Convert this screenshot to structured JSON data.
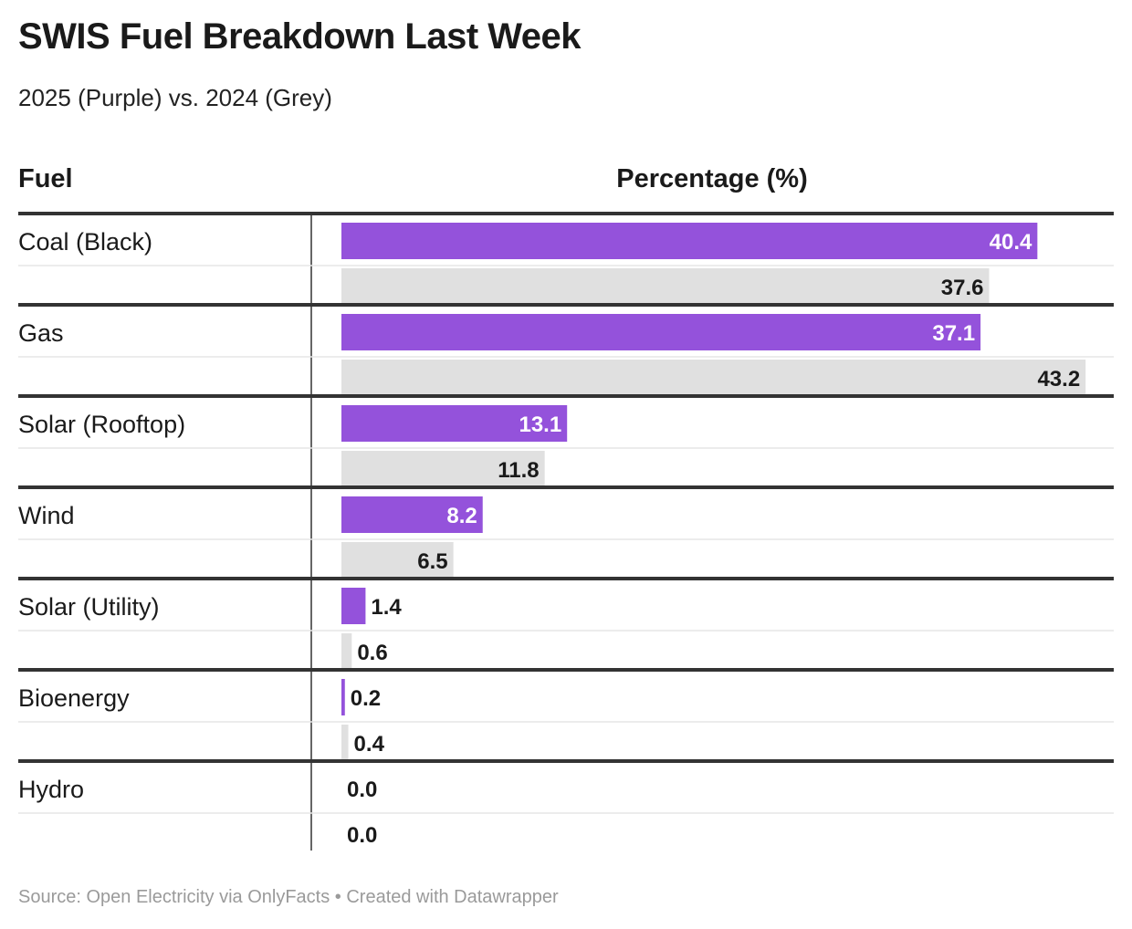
{
  "title": "SWIS Fuel Breakdown Last Week",
  "subtitle": "2025 (Purple) vs. 2024 (Grey)",
  "headers": {
    "fuel": "Fuel",
    "percentage": "Percentage (%)"
  },
  "footer": "Source: Open Electricity via OnlyFacts • Created with Datawrapper",
  "colors": {
    "y2025": "#9452db",
    "y2024": "#e0e0e0",
    "rule": "#333333",
    "separator": "#e6e6e6"
  },
  "chart_data": {
    "type": "bar",
    "orientation": "horizontal",
    "categories": [
      "Coal (Black)",
      "Gas",
      "Solar (Rooftop)",
      "Wind",
      "Solar (Utility)",
      "Bioenergy",
      "Hydro"
    ],
    "series": [
      {
        "values": [
          40.4,
          37.1,
          13.1,
          8.2,
          1.4,
          0.2,
          0.0
        ],
        "color": "#9452db"
      },
      {
        "values": [
          37.6,
          43.2,
          11.8,
          6.5,
          0.6,
          0.4,
          0.0
        ],
        "color": "#e0e0e0"
      }
    ],
    "value_labels": [
      [
        "40.4",
        "37.1",
        "13.1",
        "8.2",
        "1.4",
        "0.2",
        "0.0"
      ],
      [
        "37.6",
        "43.2",
        "11.8",
        "6.5",
        "0.6",
        "0.4",
        "0.0"
      ]
    ],
    "title": "SWIS Fuel Breakdown Last Week",
    "xlabel": "Percentage (%)",
    "ylabel": "Fuel",
    "xlim": [
      0,
      44
    ],
    "grid": false,
    "legend": "none"
  }
}
